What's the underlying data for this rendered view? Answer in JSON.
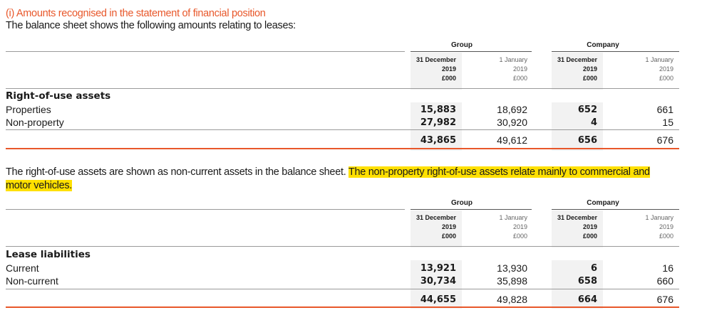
{
  "section_title": "(i) Amounts recognised in the statement of financial position",
  "intro": "The balance sheet shows the following amounts relating to leases:",
  "table1": {
    "group_label": "Group",
    "company_label": "Company",
    "columns": [
      {
        "line1": "31 December",
        "line2": "2019",
        "line3": "£000"
      },
      {
        "line1": "1 January",
        "line2": "2019",
        "line3": "£000"
      },
      {
        "line1": "31 December",
        "line2": "2019",
        "line3": "£000"
      },
      {
        "line1": "1 January",
        "line2": "2019",
        "line3": "£000"
      }
    ],
    "heading": "Right-of-use assets",
    "rows": [
      {
        "label": "Properties",
        "values": [
          "15,883",
          "18,692",
          "652",
          "661"
        ]
      },
      {
        "label": "Non-property",
        "values": [
          "27,982",
          "30,920",
          "4",
          "15"
        ]
      }
    ],
    "total": [
      "43,865",
      "49,612",
      "656",
      "676"
    ]
  },
  "paragraph": {
    "plain": "The right-of-use assets are shown as non-current assets in the balance sheet. ",
    "highlighted": "The non-property right-of-use assets relate mainly to commercial and motor vehicles."
  },
  "table2": {
    "group_label": "Group",
    "company_label": "Company",
    "columns": [
      {
        "line1": "31 December",
        "line2": "2019",
        "line3": "£000"
      },
      {
        "line1": "1 January",
        "line2": "2019",
        "line3": "£000"
      },
      {
        "line1": "31 December",
        "line2": "2019",
        "line3": "£000"
      },
      {
        "line1": "1 January",
        "line2": "2019",
        "line3": "£000"
      }
    ],
    "heading": "Lease liabilities",
    "rows": [
      {
        "label": "Current",
        "values": [
          "13,921",
          "13,930",
          "6",
          "16"
        ]
      },
      {
        "label": "Non-current",
        "values": [
          "30,734",
          "35,898",
          "658",
          "660"
        ]
      }
    ],
    "total": [
      "44,655",
      "49,828",
      "664",
      "676"
    ]
  }
}
